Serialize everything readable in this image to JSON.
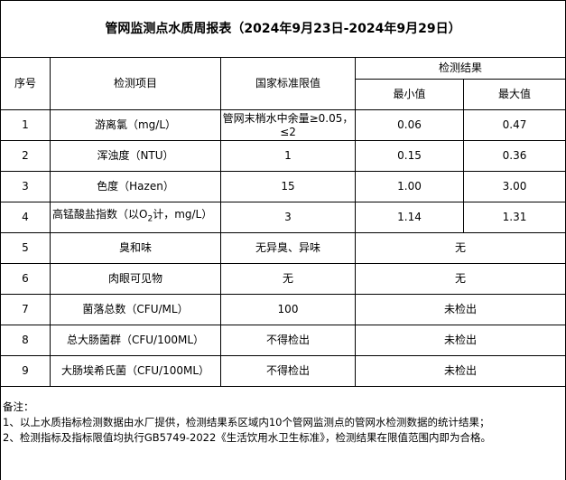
{
  "title": "管网监测点水质周报表（2024年9月23日-2024年9月29日）",
  "headers": {
    "no": "序号",
    "item": "检测项目",
    "standard": "国家标准限值",
    "result": "检测结果",
    "min": "最小值",
    "max": "最大值"
  },
  "rows": [
    {
      "no": "1",
      "item": "游离氯（mg/L）",
      "standard": "管网末梢水中余量≥0.05，≤2",
      "min": "0.06",
      "max": "0.47"
    },
    {
      "no": "2",
      "item": "浑浊度（NTU）",
      "standard": "1",
      "min": "0.15",
      "max": "0.36"
    },
    {
      "no": "3",
      "item": "色度（Hazen）",
      "standard": "15",
      "min": "1.00",
      "max": "3.00"
    },
    {
      "no": "4",
      "item_pre": "高锰酸盐指数（以O",
      "item_sub": "2",
      "item_post": "计，mg/L）",
      "standard": "3",
      "min": "1.14",
      "max": "1.31"
    },
    {
      "no": "5",
      "item": "臭和味",
      "standard": "无异臭、异味",
      "result": "无"
    },
    {
      "no": "6",
      "item": "肉眼可见物",
      "standard": "无",
      "result": "无"
    },
    {
      "no": "7",
      "item": "菌落总数（CFU/ML）",
      "standard": "100",
      "result": "未检出"
    },
    {
      "no": "8",
      "item": "总大肠菌群（CFU/100ML）",
      "standard": "不得检出",
      "result": "未检出"
    },
    {
      "no": "9",
      "item": "大肠埃希氏菌（CFU/100ML）",
      "standard": "不得检出",
      "result": "未检出"
    }
  ],
  "notes": {
    "label": "备注：",
    "lines": [
      "1、以上水质指标检测数据由水厂提供，检测结果系区域内10个管网监测点的管网水检测数据的统计结果；",
      "2、检测指标及指标限值均执行GB5749-2022《生活饮用水卫生标准》，检测结果在限值范围内即为合格。"
    ]
  }
}
